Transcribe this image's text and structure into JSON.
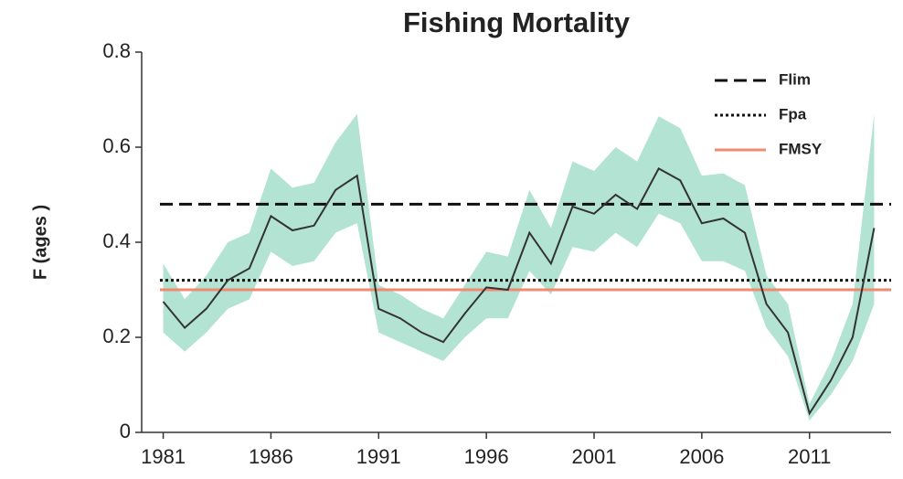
{
  "chart_data": {
    "type": "line",
    "title": "Fishing Mortality",
    "y_label": "F (ages )",
    "x": [
      1981,
      1982,
      1983,
      1984,
      1985,
      1986,
      1987,
      1988,
      1989,
      1990,
      1991,
      1992,
      1993,
      1994,
      1995,
      1996,
      1997,
      1998,
      1999,
      2000,
      2001,
      2002,
      2003,
      2004,
      2005,
      2006,
      2007,
      2008,
      2009,
      2010,
      2011,
      2012,
      2013,
      2014
    ],
    "values": [
      0.275,
      0.22,
      0.26,
      0.32,
      0.345,
      0.455,
      0.425,
      0.435,
      0.51,
      0.54,
      0.26,
      0.24,
      0.21,
      0.19,
      0.25,
      0.305,
      0.3,
      0.42,
      0.355,
      0.475,
      0.46,
      0.5,
      0.47,
      0.555,
      0.53,
      0.44,
      0.45,
      0.42,
      0.27,
      0.21,
      0.04,
      0.11,
      0.2,
      0.43
    ],
    "band_upper": [
      0.355,
      0.28,
      0.33,
      0.4,
      0.42,
      0.555,
      0.515,
      0.525,
      0.61,
      0.67,
      0.31,
      0.29,
      0.26,
      0.24,
      0.31,
      0.38,
      0.37,
      0.51,
      0.43,
      0.57,
      0.55,
      0.6,
      0.57,
      0.665,
      0.64,
      0.54,
      0.545,
      0.52,
      0.33,
      0.27,
      0.06,
      0.15,
      0.27,
      0.67
    ],
    "band_lower": [
      0.21,
      0.17,
      0.21,
      0.26,
      0.28,
      0.38,
      0.35,
      0.36,
      0.42,
      0.44,
      0.21,
      0.19,
      0.17,
      0.15,
      0.2,
      0.24,
      0.24,
      0.34,
      0.29,
      0.39,
      0.38,
      0.42,
      0.39,
      0.46,
      0.44,
      0.36,
      0.36,
      0.34,
      0.22,
      0.16,
      0.025,
      0.08,
      0.15,
      0.27
    ],
    "color": "#333333",
    "band_color": "#b3e3d2",
    "reference_lines": [
      {
        "name": "Flim",
        "value": 0.48,
        "color": "#111111",
        "style": "dashed"
      },
      {
        "name": "Fpa",
        "value": 0.32,
        "color": "#111111",
        "style": "dotted"
      },
      {
        "name": "FMSY",
        "value": 0.3,
        "color": "#f08a70",
        "style": "solid"
      }
    ],
    "xlim": [
      1980,
      2015
    ],
    "xticks": [
      1981,
      1986,
      1991,
      1996,
      2001,
      2006,
      2011
    ],
    "ylim": [
      0,
      0.8
    ],
    "yticks": [
      0,
      0.2,
      0.4,
      0.6,
      0.8
    ],
    "legend": "upper right"
  }
}
